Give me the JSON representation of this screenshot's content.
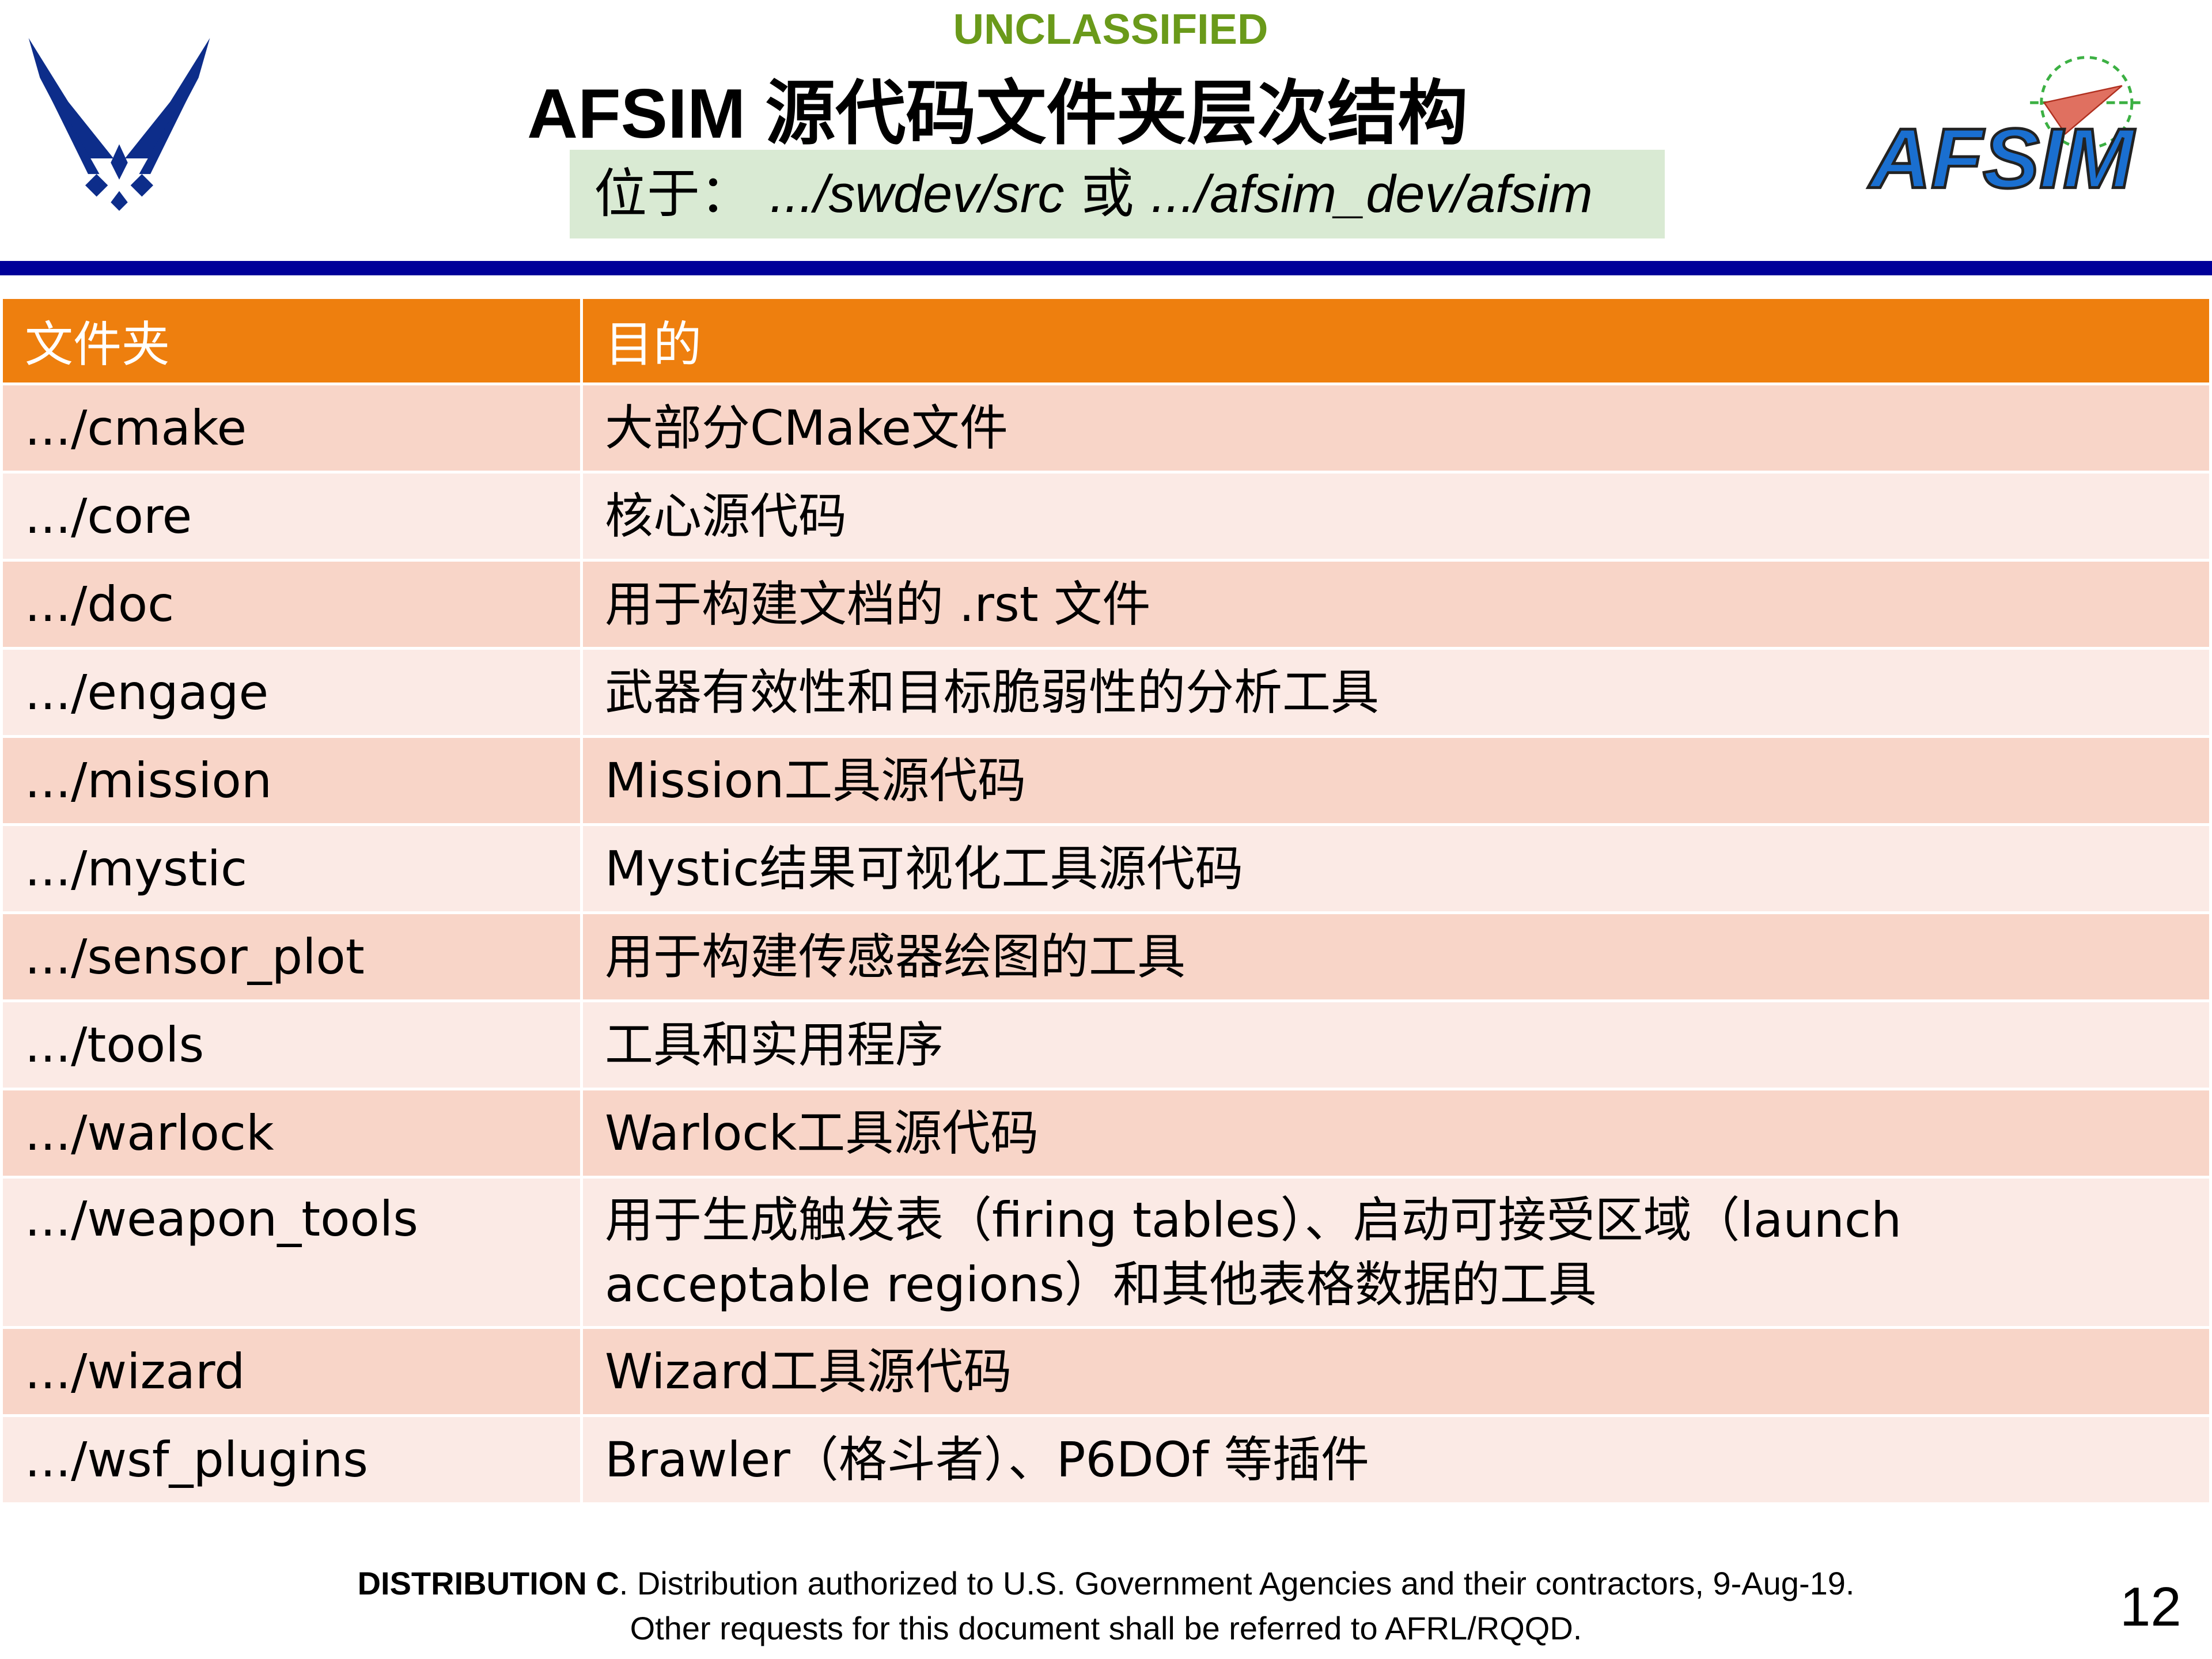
{
  "header": {
    "classification": "UNCLASSIFIED",
    "title": "AFSIM 源代码文件夹层次结构",
    "location_label": "位于：",
    "location_path1": ".../swdev/src",
    "location_or": "或",
    "location_path2": ".../afsim_dev/afsim",
    "left_logo": "us-air-force-logo",
    "right_logo": "afsim-logo",
    "right_logo_text": "AFSIM"
  },
  "colors": {
    "header_row": "#ee7f0e",
    "row_odd": "#f8d5c8",
    "row_even": "#fbeae5",
    "rule": "#000099",
    "classification": "#6a9a1a",
    "location_bg": "#d9ead3"
  },
  "table": {
    "headers": [
      "文件夹",
      "目的"
    ],
    "rows": [
      {
        "folder": ".../cmake",
        "purpose": "大部分CMake文件"
      },
      {
        "folder": ".../core",
        "purpose": "核心源代码"
      },
      {
        "folder": ".../doc",
        "purpose": "用于构建文档的 .rst 文件"
      },
      {
        "folder": ".../engage",
        "purpose": "武器有效性和目标脆弱性的分析工具"
      },
      {
        "folder": ".../mission",
        "purpose": "Mission工具源代码"
      },
      {
        "folder": ".../mystic",
        "purpose": "Mystic结果可视化工具源代码"
      },
      {
        "folder": ".../sensor_plot",
        "purpose": "用于构建传感器绘图的工具"
      },
      {
        "folder": ".../tools",
        "purpose": "工具和实用程序"
      },
      {
        "folder": ".../warlock",
        "purpose": "Warlock工具源代码"
      },
      {
        "folder": ".../weapon_tools",
        "purpose": "用于生成触发表（firing tables）、启动可接受区域（launch acceptable regions）和其他表格数据的工具"
      },
      {
        "folder": ".../wizard",
        "purpose": "Wizard工具源代码"
      },
      {
        "folder": ".../wsf_plugins",
        "purpose": "Brawler（格斗者）、P6DOf 等插件"
      }
    ]
  },
  "footer": {
    "dist_bold": "DISTRIBUTION C",
    "dist_text": ". Distribution authorized to U.S. Government Agencies and their contractors, 9-Aug-19.",
    "line2": "Other requests for this document shall be referred to AFRL/RQQD.",
    "page_number": "12"
  }
}
